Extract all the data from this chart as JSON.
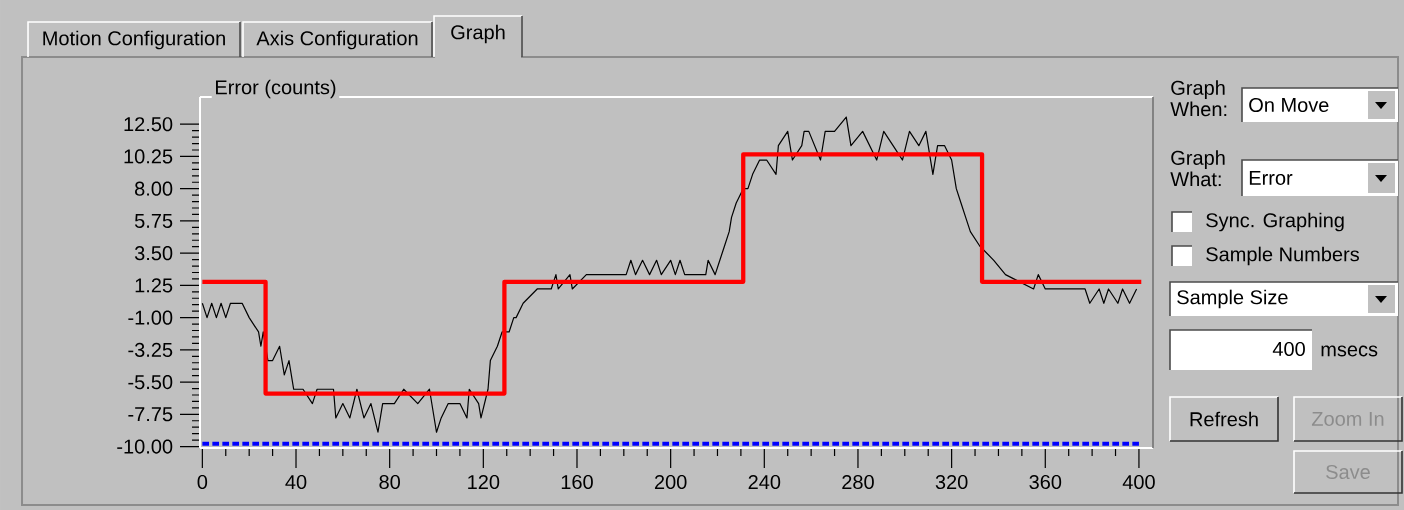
{
  "chart_data": {
    "type": "line",
    "title": "Error (counts)",
    "xlim": [
      -1,
      406
    ],
    "ylim": [
      -10.1,
      14.4
    ],
    "xticks": [
      0,
      40,
      80,
      120,
      160,
      200,
      240,
      280,
      320,
      360,
      400
    ],
    "yticks": [
      {
        "value": -10,
        "label": "-10.00"
      },
      {
        "value": -7.75,
        "label": "-7.75"
      },
      {
        "value": -5.5,
        "label": "-5.50"
      },
      {
        "value": -3.25,
        "label": "-3.25"
      },
      {
        "value": -1,
        "label": "-1.00"
      },
      {
        "value": 1.25,
        "label": "1.25"
      },
      {
        "value": 3.5,
        "label": "3.50"
      },
      {
        "value": 5.75,
        "label": "5.75"
      },
      {
        "value": 8,
        "label": "8.00"
      },
      {
        "value": 10.25,
        "label": "10.25"
      },
      {
        "value": 12.5,
        "label": "12.50"
      }
    ],
    "series": [
      {
        "type": "line",
        "color": "#000000",
        "x": [
          0,
          2,
          4,
          6,
          8,
          10,
          12,
          17,
          20,
          24,
          25,
          26,
          28,
          30,
          33,
          35,
          37,
          39,
          43,
          47,
          49,
          52,
          56,
          57,
          60,
          63,
          66,
          69,
          72,
          75,
          77,
          82,
          86,
          92,
          97,
          100,
          102,
          105,
          110,
          113,
          114,
          118,
          119,
          122,
          123,
          126,
          128,
          131,
          133,
          134,
          137,
          143,
          149,
          151,
          152,
          157,
          158,
          164,
          181,
          183,
          185,
          188,
          191,
          194,
          196,
          200,
          202,
          204,
          206,
          215,
          216,
          219,
          221,
          223,
          225,
          226,
          228,
          231,
          233,
          235,
          238,
          241,
          245,
          246,
          250,
          252,
          256,
          257,
          259,
          264,
          266,
          270,
          275,
          277,
          282,
          288,
          291,
          295,
          299,
          302,
          306,
          309,
          312,
          314,
          317,
          320,
          322,
          324,
          326,
          328,
          332,
          338,
          343,
          355,
          357,
          360,
          377,
          379,
          383,
          385,
          387,
          391,
          393,
          396,
          399
        ],
        "values": [
          0,
          -1,
          0,
          -1,
          0,
          -1,
          0,
          0,
          -1,
          -2,
          -3,
          -2,
          -4,
          -4,
          -3,
          -5,
          -4,
          -6,
          -6,
          -7,
          -6,
          -6,
          -6,
          -8,
          -7,
          -8,
          -6,
          -8,
          -7,
          -9,
          -7,
          -7,
          -6,
          -7,
          -6,
          -9,
          -8,
          -7,
          -7,
          -8,
          -6,
          -7,
          -8,
          -6,
          -4,
          -3,
          -2,
          -2,
          -1,
          -1,
          0,
          1,
          1,
          2,
          1,
          2,
          1,
          2,
          2,
          3,
          2,
          3,
          2,
          3,
          2,
          3,
          2,
          3,
          2,
          2,
          3,
          2,
          3,
          4,
          5,
          6,
          7,
          8,
          8,
          9,
          10,
          10,
          9,
          11,
          12,
          10,
          11,
          12,
          12,
          10,
          12,
          12,
          13,
          11,
          12,
          10,
          12,
          11,
          10,
          12,
          11,
          12,
          9,
          11,
          11,
          10,
          8,
          7,
          6,
          5,
          4,
          3,
          2,
          1,
          2,
          1,
          1,
          0,
          1,
          0,
          1,
          0,
          1,
          0,
          1
        ]
      },
      {
        "type": "step",
        "color": "#ff0000",
        "x": [
          0,
          27,
          129,
          231,
          333,
          401
        ],
        "values": [
          1.5,
          -6.3,
          1.5,
          10.4,
          1.5,
          1.5
        ]
      },
      {
        "type": "line",
        "color": "#0000ff",
        "line_style": "dashed",
        "x": [
          0,
          400
        ],
        "values": [
          -9.8,
          -9.8
        ]
      }
    ],
    "annotations": [
      "Motion Configuration",
      "Axis Configuration",
      "Graph",
      "Graph When:",
      "On Move",
      "Graph What:",
      "Error",
      "Sync. Graphing",
      "Sample Numbers",
      "Sample Size",
      "400",
      "msecs",
      "Refresh",
      "Zoom In",
      "Save"
    ]
  }
}
